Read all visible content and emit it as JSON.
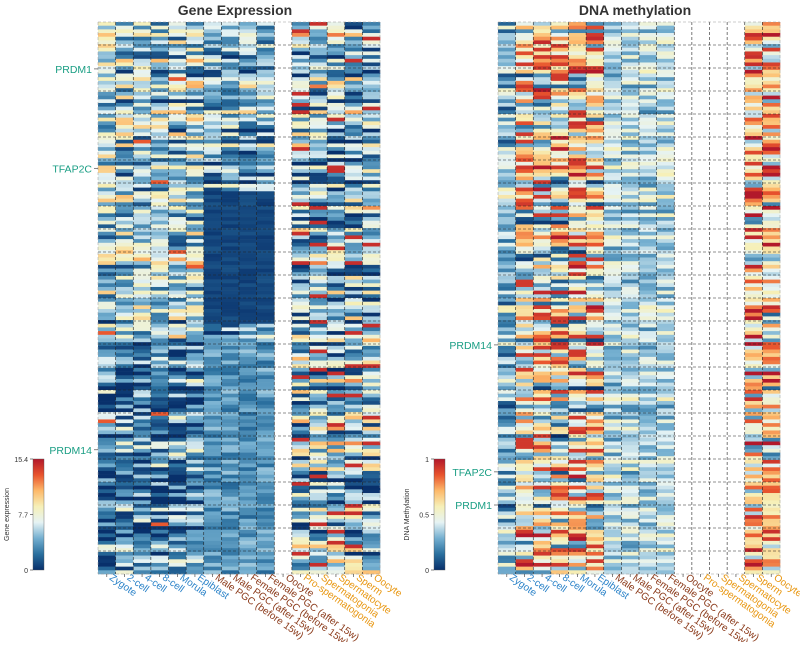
{
  "chart_data": [
    {
      "type": "heatmap",
      "title": "Gene Expression",
      "colorbar": {
        "label": "Gene expression",
        "ticks": [
          "15.4",
          "7.7",
          "0"
        ],
        "range": [
          0,
          15.4
        ]
      },
      "columns": [
        {
          "label": "Zygote",
          "group": "early"
        },
        {
          "label": "2-cell",
          "group": "early"
        },
        {
          "label": "4-cell",
          "group": "early"
        },
        {
          "label": "8-cell",
          "group": "early"
        },
        {
          "label": "Morula",
          "group": "early"
        },
        {
          "label": "Epiblast",
          "group": "early"
        },
        {
          "label": "Male PGC (before 15w)",
          "group": "pgc"
        },
        {
          "label": "Male PGC (after 15w)",
          "group": "pgc"
        },
        {
          "label": "Female PGC (before 15w)",
          "group": "pgc"
        },
        {
          "label": "Female PGC (after 15w)",
          "group": "pgc"
        },
        {
          "label": "Oocyte",
          "group": "pgc"
        },
        {
          "label": "Pro-spermatogonia",
          "group": "late"
        },
        {
          "label": "Spermatogonia",
          "group": "late"
        },
        {
          "label": "Spermatocyte",
          "group": "late"
        },
        {
          "label": "Sperm",
          "group": "late"
        },
        {
          "label": "Oocyte",
          "group": "late"
        }
      ],
      "gene_labels": [
        {
          "name": "PRDM1",
          "row_fraction": 0.085
        },
        {
          "name": "TFAP2C",
          "row_fraction": 0.265
        },
        {
          "name": "PRDM14",
          "row_fraction": 0.775
        }
      ],
      "empty_columns": [
        10
      ],
      "notes": "Early embryo and PGC columns mostly low (blue); PGC block dark between ~30% and ~55% of rows; late germ-cell columns show red/orange patches."
    },
    {
      "type": "heatmap",
      "title": "DNA methylation",
      "colorbar": {
        "label": "DNA Methylation",
        "ticks": [
          "1",
          "0.5",
          "0"
        ],
        "range": [
          0,
          1
        ]
      },
      "columns": [
        {
          "label": "Zygote",
          "group": "early"
        },
        {
          "label": "2-cell",
          "group": "early"
        },
        {
          "label": "4-cell",
          "group": "early"
        },
        {
          "label": "8-cell",
          "group": "early"
        },
        {
          "label": "Morula",
          "group": "early"
        },
        {
          "label": "Epiblast",
          "group": "early"
        },
        {
          "label": "Male PGC (before 15w)",
          "group": "pgc"
        },
        {
          "label": "Male PGC (after 15w)",
          "group": "pgc"
        },
        {
          "label": "Female PGC (before 15w)",
          "group": "pgc"
        },
        {
          "label": "Female PGC (after 15w)",
          "group": "pgc"
        },
        {
          "label": "Oocyte",
          "group": "pgc"
        },
        {
          "label": "Pro-spermatogonia",
          "group": "late"
        },
        {
          "label": "Spermatogonia",
          "group": "late"
        },
        {
          "label": "Spermatocyte",
          "group": "late"
        },
        {
          "label": "Sperm",
          "group": "late"
        },
        {
          "label": "Oocyte",
          "group": "late"
        }
      ],
      "gene_labels": [
        {
          "name": "PRDM14",
          "row_fraction": 0.585
        },
        {
          "name": "TFAP2C",
          "row_fraction": 0.815
        },
        {
          "name": "PRDM1",
          "row_fraction": 0.875
        }
      ],
      "empty_columns": [
        10,
        11,
        12,
        13
      ],
      "notes": "Early embryo columns (2-cell to Epiblast) rich in red/orange; PGC columns blue; last two columns (Sperm, Oocyte) mostly red."
    }
  ],
  "colors": {
    "early_label": "#2a82c8",
    "pgc_label": "#8b3a1a",
    "late_label": "#e8960f",
    "gene_label": "#1a9e84",
    "colormap": [
      "#08306b",
      "#2a6f9e",
      "#74afd0",
      "#e6f3f4",
      "#f6f0b8",
      "#fdb96a",
      "#e8532d",
      "#b2182b"
    ]
  }
}
